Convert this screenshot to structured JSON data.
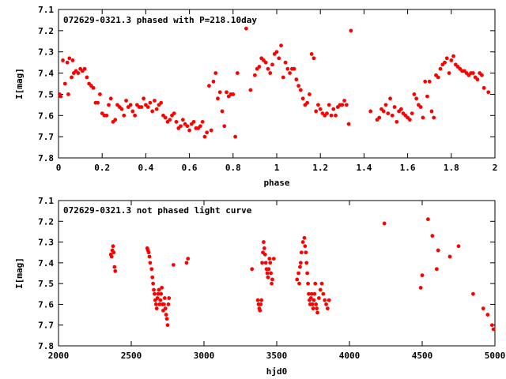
{
  "colors": {
    "points": "#ff0000",
    "axes": "#000000",
    "background": "#ffffff"
  },
  "chart_data": [
    {
      "type": "scatter",
      "title": "072629-0321.3 phased with P=218.10day",
      "xlabel": "phase",
      "ylabel": "I[mag]",
      "xlim": [
        0,
        2
      ],
      "ylim": [
        7.8,
        7.1
      ],
      "y_inverted": true,
      "grid": false,
      "x_ticks": [
        0,
        0.2,
        0.4,
        0.6,
        0.8,
        1,
        1.2,
        1.4,
        1.6,
        1.8,
        2
      ],
      "x_tick_labels": [
        "0",
        "0.2",
        "0.4",
        "0.6",
        "0.8",
        "1",
        "1.2",
        "1.4",
        "1.6",
        "1.8",
        "2"
      ],
      "y_ticks": [
        7.1,
        7.2,
        7.3,
        7.4,
        7.5,
        7.6,
        7.7,
        7.8
      ],
      "y_tick_labels": [
        "7.1",
        "7.2",
        "7.3",
        "7.4",
        "7.5",
        "7.6",
        "7.7",
        "7.8"
      ],
      "series": [
        {
          "x": [
            0.005,
            0.01,
            0.02,
            0.03,
            0.04,
            0.045,
            0.05,
            0.06,
            0.065,
            0.07,
            0.08,
            0.09,
            0.1,
            0.11,
            0.12,
            0.13,
            0.14,
            0.15,
            0.16,
            0.17,
            0.18,
            0.19,
            0.2,
            0.21,
            0.22,
            0.23,
            0.24,
            0.25,
            0.26,
            0.27,
            0.28,
            0.29,
            0.3,
            0.31,
            0.32,
            0.33,
            0.34,
            0.35,
            0.36,
            0.37,
            0.38,
            0.39,
            0.4,
            0.41,
            0.42,
            0.43,
            0.44,
            0.45,
            0.46,
            0.47,
            0.48,
            0.49,
            0.5,
            0.51,
            0.52,
            0.53,
            0.54,
            0.55,
            0.56,
            0.57,
            0.58,
            0.59,
            0.6,
            0.61,
            0.62,
            0.63,
            0.64,
            0.65,
            0.66,
            0.67,
            0.68,
            0.69,
            0.7,
            0.71,
            0.72,
            0.73,
            0.74,
            0.75,
            0.76,
            0.77,
            0.78,
            0.79,
            0.8,
            0.81,
            0.82,
            0.86,
            0.88,
            0.9,
            0.91,
            0.92,
            0.93,
            0.94,
            0.95,
            0.96,
            0.97,
            0.98,
            0.99,
            1.0,
            1.01,
            1.02,
            1.03,
            1.04,
            1.05,
            1.06,
            1.07,
            1.08,
            1.09,
            1.1,
            1.11,
            1.12,
            1.13,
            1.14,
            1.15,
            1.16,
            1.17,
            1.18,
            1.19,
            1.2,
            1.21,
            1.22,
            1.23,
            1.24,
            1.25,
            1.26,
            1.27,
            1.28,
            1.29,
            1.3,
            1.31,
            1.32,
            1.33,
            1.34,
            1.43,
            1.46,
            1.47,
            1.48,
            1.49,
            1.5,
            1.51,
            1.52,
            1.53,
            1.54,
            1.55,
            1.56,
            1.57,
            1.58,
            1.59,
            1.6,
            1.61,
            1.62,
            1.63,
            1.64,
            1.65,
            1.66,
            1.67,
            1.68,
            1.69,
            1.7,
            1.71,
            1.72,
            1.73,
            1.74,
            1.75,
            1.76,
            1.77,
            1.78,
            1.79,
            1.8,
            1.81,
            1.82,
            1.83,
            1.84,
            1.85,
            1.86,
            1.87,
            1.88,
            1.89,
            1.9,
            1.91,
            1.92,
            1.93,
            1.94,
            1.95,
            1.97
          ],
          "y": [
            7.5,
            7.51,
            7.34,
            7.45,
            7.35,
            7.5,
            7.33,
            7.42,
            7.34,
            7.4,
            7.39,
            7.4,
            7.38,
            7.39,
            7.38,
            7.42,
            7.45,
            7.46,
            7.47,
            7.54,
            7.54,
            7.5,
            7.59,
            7.6,
            7.6,
            7.55,
            7.52,
            7.63,
            7.62,
            7.55,
            7.56,
            7.57,
            7.6,
            7.53,
            7.56,
            7.55,
            7.58,
            7.6,
            7.55,
            7.56,
            7.56,
            7.52,
            7.55,
            7.56,
            7.54,
            7.58,
            7.53,
            7.57,
            7.55,
            7.54,
            7.6,
            7.61,
            7.63,
            7.62,
            7.6,
            7.59,
            7.63,
            7.66,
            7.65,
            7.62,
            7.64,
            7.65,
            7.67,
            7.64,
            7.63,
            7.66,
            7.66,
            7.65,
            7.63,
            7.7,
            7.68,
            7.46,
            7.67,
            7.44,
            7.4,
            7.52,
            7.49,
            7.58,
            7.65,
            7.49,
            7.51,
            7.5,
            7.5,
            7.7,
            7.4,
            7.19,
            7.48,
            7.41,
            7.38,
            7.37,
            7.33,
            7.34,
            7.35,
            7.38,
            7.4,
            7.36,
            7.31,
            7.3,
            7.33,
            7.27,
            7.42,
            7.35,
            7.38,
            7.4,
            7.38,
            7.38,
            7.43,
            7.46,
            7.48,
            7.52,
            7.55,
            7.54,
            7.5,
            7.31,
            7.33,
            7.58,
            7.55,
            7.57,
            7.59,
            7.6,
            7.59,
            7.55,
            7.6,
            7.57,
            7.6,
            7.56,
            7.55,
            7.55,
            7.53,
            7.55,
            7.64,
            7.2,
            7.58,
            7.62,
            7.61,
            7.57,
            7.58,
            7.55,
            7.59,
            7.52,
            7.6,
            7.56,
            7.63,
            7.58,
            7.57,
            7.59,
            7.6,
            7.61,
            7.62,
            7.59,
            7.5,
            7.52,
            7.55,
            7.56,
            7.61,
            7.44,
            7.51,
            7.44,
            7.58,
            7.61,
            7.41,
            7.42,
            7.38,
            7.36,
            7.35,
            7.33,
            7.4,
            7.34,
            7.32,
            7.36,
            7.37,
            7.38,
            7.39,
            7.39,
            7.4,
            7.41,
            7.4,
            7.4,
            7.42,
            7.43,
            7.4,
            7.41,
            7.47,
            7.49
          ]
        }
      ]
    },
    {
      "type": "scatter",
      "title": "072629-0321.3 not phased light curve",
      "xlabel": "hjd0",
      "ylabel": "I[mag]",
      "xlim": [
        2000,
        5000
      ],
      "ylim": [
        7.8,
        7.1
      ],
      "y_inverted": true,
      "grid": false,
      "x_ticks": [
        2000,
        2500,
        3000,
        3500,
        4000,
        4500,
        5000
      ],
      "x_tick_labels": [
        "2000",
        "2500",
        "3000",
        "3500",
        "4000",
        "4500",
        "5000"
      ],
      "y_ticks": [
        7.1,
        7.2,
        7.3,
        7.4,
        7.5,
        7.6,
        7.7,
        7.8
      ],
      "y_tick_labels": [
        "7.1",
        "7.2",
        "7.3",
        "7.4",
        "7.5",
        "7.6",
        "7.7",
        "7.8"
      ],
      "series": [
        {
          "x": [
            2360,
            2365,
            2370,
            2375,
            2380,
            2385,
            2390,
            2610,
            2615,
            2620,
            2625,
            2630,
            2640,
            2645,
            2650,
            2655,
            2660,
            2665,
            2670,
            2675,
            2680,
            2685,
            2690,
            2695,
            2700,
            2705,
            2710,
            2715,
            2720,
            2725,
            2730,
            2735,
            2740,
            2745,
            2750,
            2755,
            2760,
            2790,
            2880,
            2890,
            3330,
            3370,
            3375,
            3380,
            3385,
            3390,
            3395,
            3400,
            3405,
            3410,
            3415,
            3420,
            3425,
            3430,
            3435,
            3440,
            3445,
            3450,
            3455,
            3460,
            3465,
            3470,
            3480,
            3640,
            3650,
            3655,
            3660,
            3665,
            3670,
            3680,
            3690,
            3695,
            3700,
            3705,
            3710,
            3715,
            3720,
            3725,
            3730,
            3735,
            3740,
            3745,
            3750,
            3755,
            3760,
            3765,
            3770,
            3775,
            3780,
            3790,
            3800,
            3810,
            3820,
            3830,
            3840,
            3850,
            3860,
            4240,
            4490,
            4500,
            4540,
            4570,
            4600,
            4610,
            4690,
            4750,
            4850,
            4920,
            4950,
            4980,
            4990
          ],
          "y": [
            7.36,
            7.37,
            7.34,
            7.32,
            7.35,
            7.42,
            7.44,
            7.33,
            7.34,
            7.35,
            7.37,
            7.4,
            7.43,
            7.47,
            7.5,
            7.53,
            7.55,
            7.58,
            7.6,
            7.62,
            7.57,
            7.55,
            7.53,
            7.6,
            7.58,
            7.55,
            7.52,
            7.6,
            7.63,
            7.6,
            7.57,
            7.62,
            7.65,
            7.67,
            7.7,
            7.6,
            7.57,
            7.41,
            7.4,
            7.38,
            7.43,
            7.58,
            7.6,
            7.62,
            7.63,
            7.6,
            7.58,
            7.4,
            7.35,
            7.3,
            7.33,
            7.36,
            7.4,
            7.43,
            7.45,
            7.47,
            7.43,
            7.38,
            7.4,
            7.45,
            7.5,
            7.48,
            7.38,
            7.48,
            7.45,
            7.5,
            7.42,
            7.4,
            7.35,
            7.3,
            7.28,
            7.32,
            7.35,
            7.4,
            7.45,
            7.5,
            7.55,
            7.58,
            7.6,
            7.57,
            7.55,
            7.6,
            7.62,
            7.58,
            7.55,
            7.5,
            7.6,
            7.62,
            7.64,
            7.57,
            7.53,
            7.5,
            7.55,
            7.58,
            7.6,
            7.62,
            7.58,
            7.21,
            7.52,
            7.46,
            7.19,
            7.27,
            7.43,
            7.34,
            7.37,
            7.32,
            7.55,
            7.62,
            7.65,
            7.7,
            7.72
          ]
        }
      ]
    }
  ]
}
